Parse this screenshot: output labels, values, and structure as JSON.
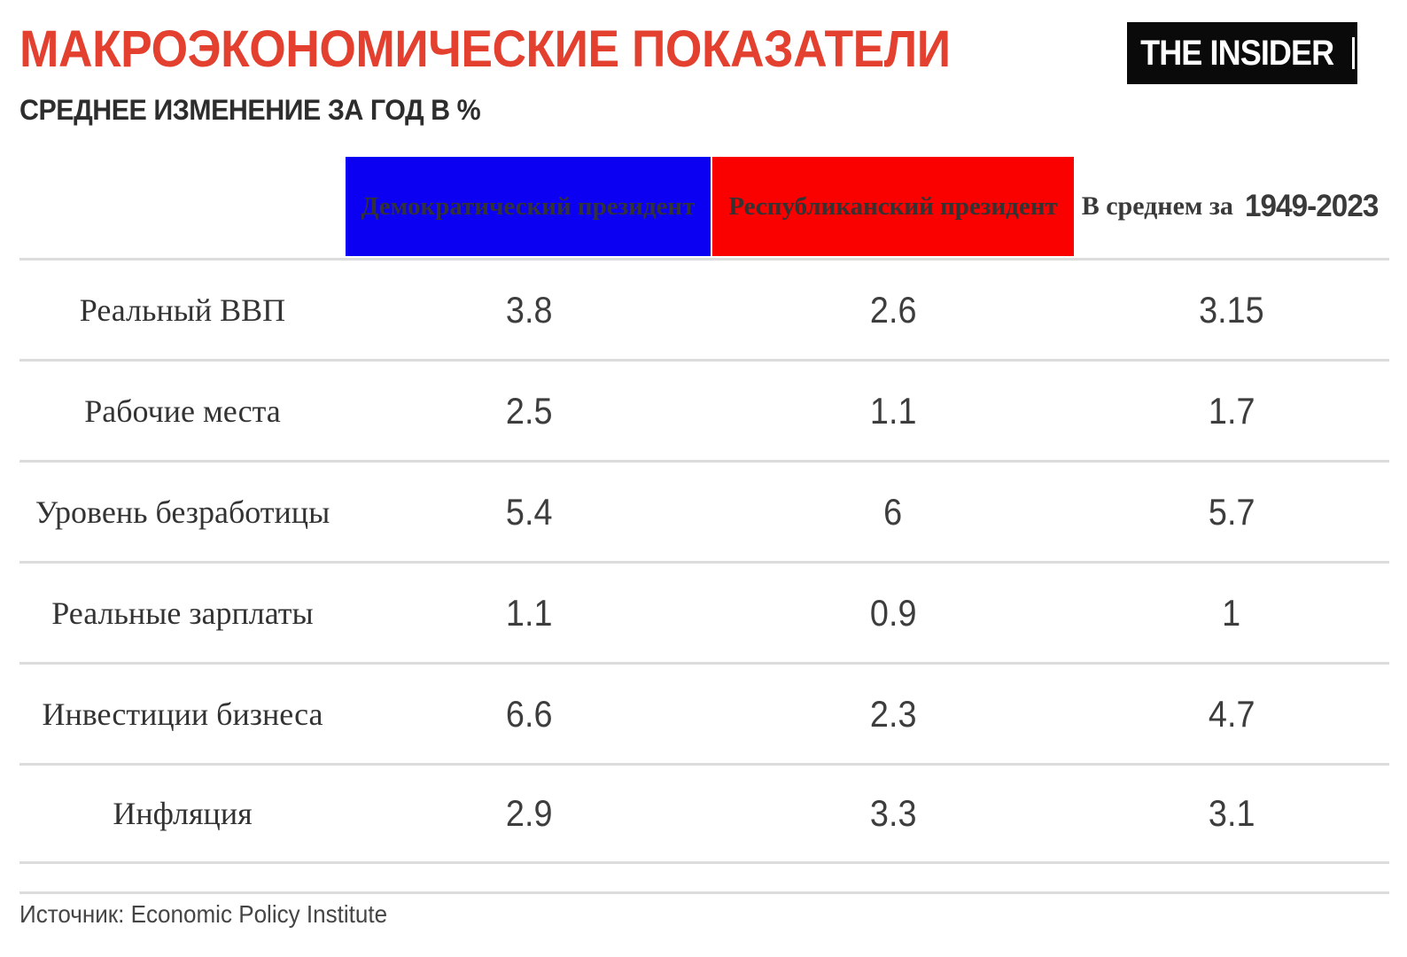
{
  "page": {
    "title": "МАКРОЭКОНОМИЧЕСКИЕ ПОКАЗАТЕЛИ",
    "subtitle": "СРЕДНЕЕ ИЗМЕНЕНИЕ ЗА ГОД В %",
    "logo_text": "THE INSIDER",
    "source": "Источник: Economic Policy Institute"
  },
  "columns": {
    "dem": "Демократический президент",
    "rep": "Республиканский президент",
    "avg_prefix": "В среднем за",
    "avg_years": "1949-2023"
  },
  "rows": [
    {
      "label": "Реальный ВВП",
      "dem": "3.8",
      "rep": "2.6",
      "avg": "3.15"
    },
    {
      "label": "Рабочие места",
      "dem": "2.5",
      "rep": "1.1",
      "avg": "1.7"
    },
    {
      "label": "Уровень безработицы",
      "dem": "5.4",
      "rep": "6",
      "avg": "5.7"
    },
    {
      "label": "Реальные зарплаты",
      "dem": "1.1",
      "rep": "0.9",
      "avg": "1"
    },
    {
      "label": "Инвестиции бизнеса",
      "dem": "6.6",
      "rep": "2.3",
      "avg": "4.7"
    },
    {
      "label": "Инфляция",
      "dem": "2.9",
      "rep": "3.3",
      "avg": "3.1"
    }
  ],
  "colors": {
    "title_red": "#E3402F",
    "dem_blue": "#0B00F2",
    "rep_red": "#FA0100",
    "divider_gray": "#DCDCDC",
    "text_dark": "#333333",
    "logo_bg": "#0A0A0A"
  },
  "chart_data": {
    "type": "table",
    "title": "МАКРОЭКОНОМИЧЕСКИЕ ПОКАЗАТЕЛИ",
    "subtitle": "СРЕДНЕЕ ИЗМЕНЕНИЕ ЗА ГОД В %",
    "categories": [
      "Реальный ВВП",
      "Рабочие места",
      "Уровень безработицы",
      "Реальные зарплаты",
      "Инвестиции бизнеса",
      "Инфляция"
    ],
    "series": [
      {
        "name": "Демократический президент",
        "color": "#0B00F2",
        "values": [
          3.8,
          2.5,
          5.4,
          1.1,
          6.6,
          2.9
        ]
      },
      {
        "name": "Республиканский президент",
        "color": "#FA0100",
        "values": [
          2.6,
          1.1,
          6,
          0.9,
          2.3,
          3.3
        ]
      },
      {
        "name": "В среднем за 1949-2023",
        "color": null,
        "values": [
          3.15,
          1.7,
          5.7,
          1,
          4.7,
          3.1
        ]
      }
    ],
    "source": "Источник: Economic Policy Institute"
  }
}
